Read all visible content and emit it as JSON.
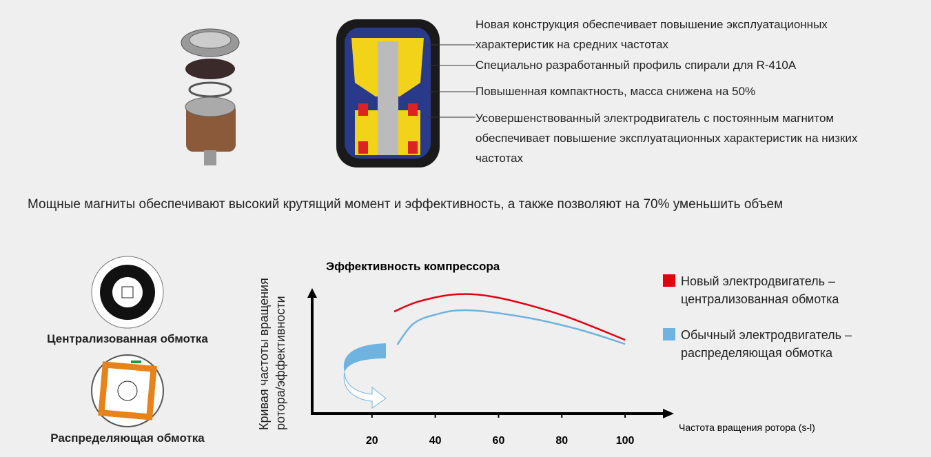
{
  "features": [
    "Новая конструкция обеспечивает повышение эксплуатационных характеристик на средних частотах",
    "Специально разработанный профиль спирали для R-410A",
    "Повышенная компактность, масса снижена на 50%",
    "Усовершенствованный электродвигатель с постоянным магнитом обеспечивает повышение эксплуатационных характеристик на низких частотах"
  ],
  "intro": "Мощные магниты обеспечивают высокий крутящий момент и эффективность, а также позволяют на 70% уменьшить объем",
  "windings": [
    "Централизованная обмотка",
    "Распределяющая обмотка"
  ],
  "chart_data": {
    "type": "line",
    "title": "Эффективность компрессора",
    "xlabel": "Частота вращения ротора (s-l)",
    "ylabel": "Кривая частоты вращения ротора/эффективности",
    "xlim": [
      0,
      110
    ],
    "xticks": [
      20,
      40,
      60,
      80,
      100
    ],
    "ylim": [
      0,
      100
    ],
    "series": [
      {
        "name": "Новый электродвигатель – централизованная обмотка",
        "color": "#e3000f",
        "x": [
          27,
          35,
          47,
          60,
          80,
          100
        ],
        "values": [
          84.6,
          93.1,
          98.9,
          96,
          81.7,
          61.1
        ]
      },
      {
        "name": "Обычный электродвигатель – распределяющая обмотка",
        "color": "#6fb3e0",
        "x": [
          28,
          33,
          40,
          50,
          68,
          85,
          100
        ],
        "values": [
          57.1,
          74.3,
          82,
          85.7,
          80,
          70,
          57.7
        ]
      }
    ]
  }
}
